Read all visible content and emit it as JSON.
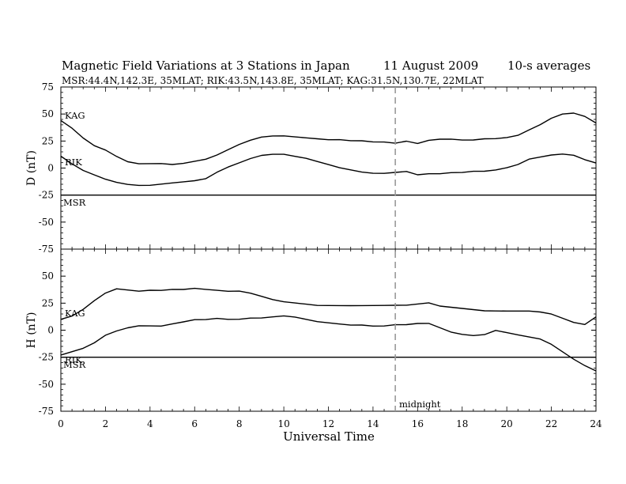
{
  "chart_data": {
    "type": "line",
    "title": "Magnetic Field Variations at 3 Stations in Japan",
    "date_label": "11  August   2009",
    "averaging_label": "10-s averages",
    "subtitle": "MSR:44.4N,142.3E, 35MLAT;   RIK:43.5N,143.8E, 35MLAT;   KAG:31.5N,130.7E, 22MLAT",
    "xlabel": "Universal Time",
    "xlim": [
      0,
      24
    ],
    "xticks": [
      "0",
      "2",
      "4",
      "6",
      "8",
      "10",
      "12",
      "14",
      "16",
      "18",
      "20",
      "22",
      "24"
    ],
    "midnight_ut": 15,
    "midnight_label": "midnight",
    "panels": [
      {
        "ylabel": "D (nT)",
        "ylim": [
          -75,
          75
        ],
        "yticks": [
          "75",
          "50",
          "25",
          "0",
          "-25",
          "-50",
          "-75"
        ],
        "series": [
          {
            "name": "KAG",
            "x": [
              0,
              0.5,
              1,
              1.5,
              2,
              2.5,
              3,
              3.5,
              4,
              4.5,
              5,
              5.5,
              6,
              6.5,
              7,
              7.5,
              8,
              8.5,
              9,
              9.5,
              10,
              10.5,
              11,
              11.5,
              12,
              12.5,
              13,
              13.5,
              14,
              14.5,
              15,
              15.5,
              16,
              16.5,
              17,
              17.5,
              18,
              18.5,
              19,
              19.5,
              20,
              20.5,
              21,
              21.5,
              22,
              22.5,
              23,
              23.5,
              24
            ],
            "values": [
              44,
              37,
              28,
              21,
              17,
              11,
              6,
              4,
              4,
              4,
              3,
              4,
              6,
              8,
              12,
              17,
              22,
              26,
              29,
              30,
              30,
              29,
              28,
              27,
              26,
              26,
              25,
              25,
              24,
              24,
              23,
              25,
              23,
              26,
              27,
              27,
              26,
              26,
              27,
              27,
              28,
              30,
              35,
              40,
              46,
              50,
              51,
              48,
              42
            ]
          },
          {
            "name": "RIK",
            "x": [
              0,
              0.5,
              1,
              1.5,
              2,
              2.5,
              3,
              3.5,
              4,
              4.5,
              5,
              5.5,
              6,
              6.5,
              7,
              7.5,
              8,
              8.5,
              9,
              9.5,
              10,
              10.5,
              11,
              11.5,
              12,
              12.5,
              13,
              13.5,
              14,
              14.5,
              15,
              15.5,
              16,
              16.5,
              17,
              17.5,
              18,
              18.5,
              19,
              19.5,
              20,
              20.5,
              21,
              21.5,
              22,
              22.5,
              23,
              23.5,
              24
            ],
            "values": [
              11,
              4,
              -2,
              -6,
              -10,
              -13,
              -15,
              -16,
              -16,
              -15,
              -14,
              -13,
              -12,
              -10,
              -4,
              1,
              5,
              9,
              12,
              13,
              13,
              11,
              9,
              6,
              3,
              0,
              -2,
              -4,
              -5,
              -5,
              -4,
              -3,
              -6,
              -5,
              -5,
              -4,
              -4,
              -3,
              -3,
              -2,
              0,
              3,
              8,
              10,
              12,
              13,
              12,
              8,
              5
            ]
          },
          {
            "name": "MSR",
            "x": [
              0,
              24
            ],
            "values": [
              -25,
              -25
            ]
          }
        ]
      },
      {
        "ylabel": "H (nT)",
        "ylim": [
          -75,
          75
        ],
        "yticks": [
          "50",
          "25",
          "0",
          "-25",
          "-50",
          "-75"
        ],
        "series": [
          {
            "name": "KAG",
            "x": [
              0,
              0.5,
              1,
              1.5,
              2,
              2.5,
              3,
              3.5,
              4,
              4.5,
              5,
              5.5,
              6,
              6.5,
              7,
              7.5,
              8,
              8.5,
              9,
              9.5,
              10,
              10.5,
              11,
              11.5,
              12,
              12.5,
              13,
              13.5,
              14,
              14.5,
              15,
              15.5,
              16,
              16.5,
              17,
              17.5,
              18,
              18.5,
              19,
              19.5,
              20,
              20.5,
              21,
              21.5,
              22,
              22.5,
              23,
              23.5,
              24
            ],
            "values": [
              10,
              13,
              19,
              27,
              34,
              38,
              37,
              36,
              37,
              37,
              38,
              38,
              39,
              38,
              37,
              36,
              36,
              34,
              31,
              28,
              26,
              25,
              24,
              23,
              23,
              23,
              23,
              23,
              23,
              23,
              23,
              23,
              24,
              25,
              22,
              21,
              20,
              19,
              18,
              18,
              18,
              18,
              18,
              17,
              15,
              11,
              7,
              5,
              12
            ]
          },
          {
            "name": "RIK",
            "x": [
              0,
              0.5,
              1,
              1.5,
              2,
              2.5,
              3,
              3.5,
              4,
              4.5,
              5,
              5.5,
              6,
              6.5,
              7,
              7.5,
              8,
              8.5,
              9,
              9.5,
              10,
              10.5,
              11,
              11.5,
              12,
              12.5,
              13,
              13.5,
              14,
              14.5,
              15,
              15.5,
              16,
              16.5,
              17,
              17.5,
              18,
              18.5,
              19,
              19.5,
              20,
              20.5,
              21,
              21.5,
              22,
              22.5,
              23,
              23.5,
              24
            ],
            "values": [
              -23,
              -20,
              -17,
              -12,
              -5,
              -1,
              2,
              4,
              4,
              4,
              6,
              8,
              10,
              10,
              11,
              10,
              10,
              11,
              11,
              12,
              13,
              12,
              10,
              8,
              7,
              6,
              5,
              5,
              4,
              4,
              5,
              5,
              6,
              6,
              2,
              -2,
              -4,
              -5,
              -4,
              0,
              -2,
              -4,
              -6,
              -8,
              -13,
              -20,
              -27,
              -33,
              -38
            ]
          },
          {
            "name": "MSR",
            "x": [
              0,
              24
            ],
            "values": [
              -25,
              -25
            ]
          }
        ]
      }
    ]
  }
}
